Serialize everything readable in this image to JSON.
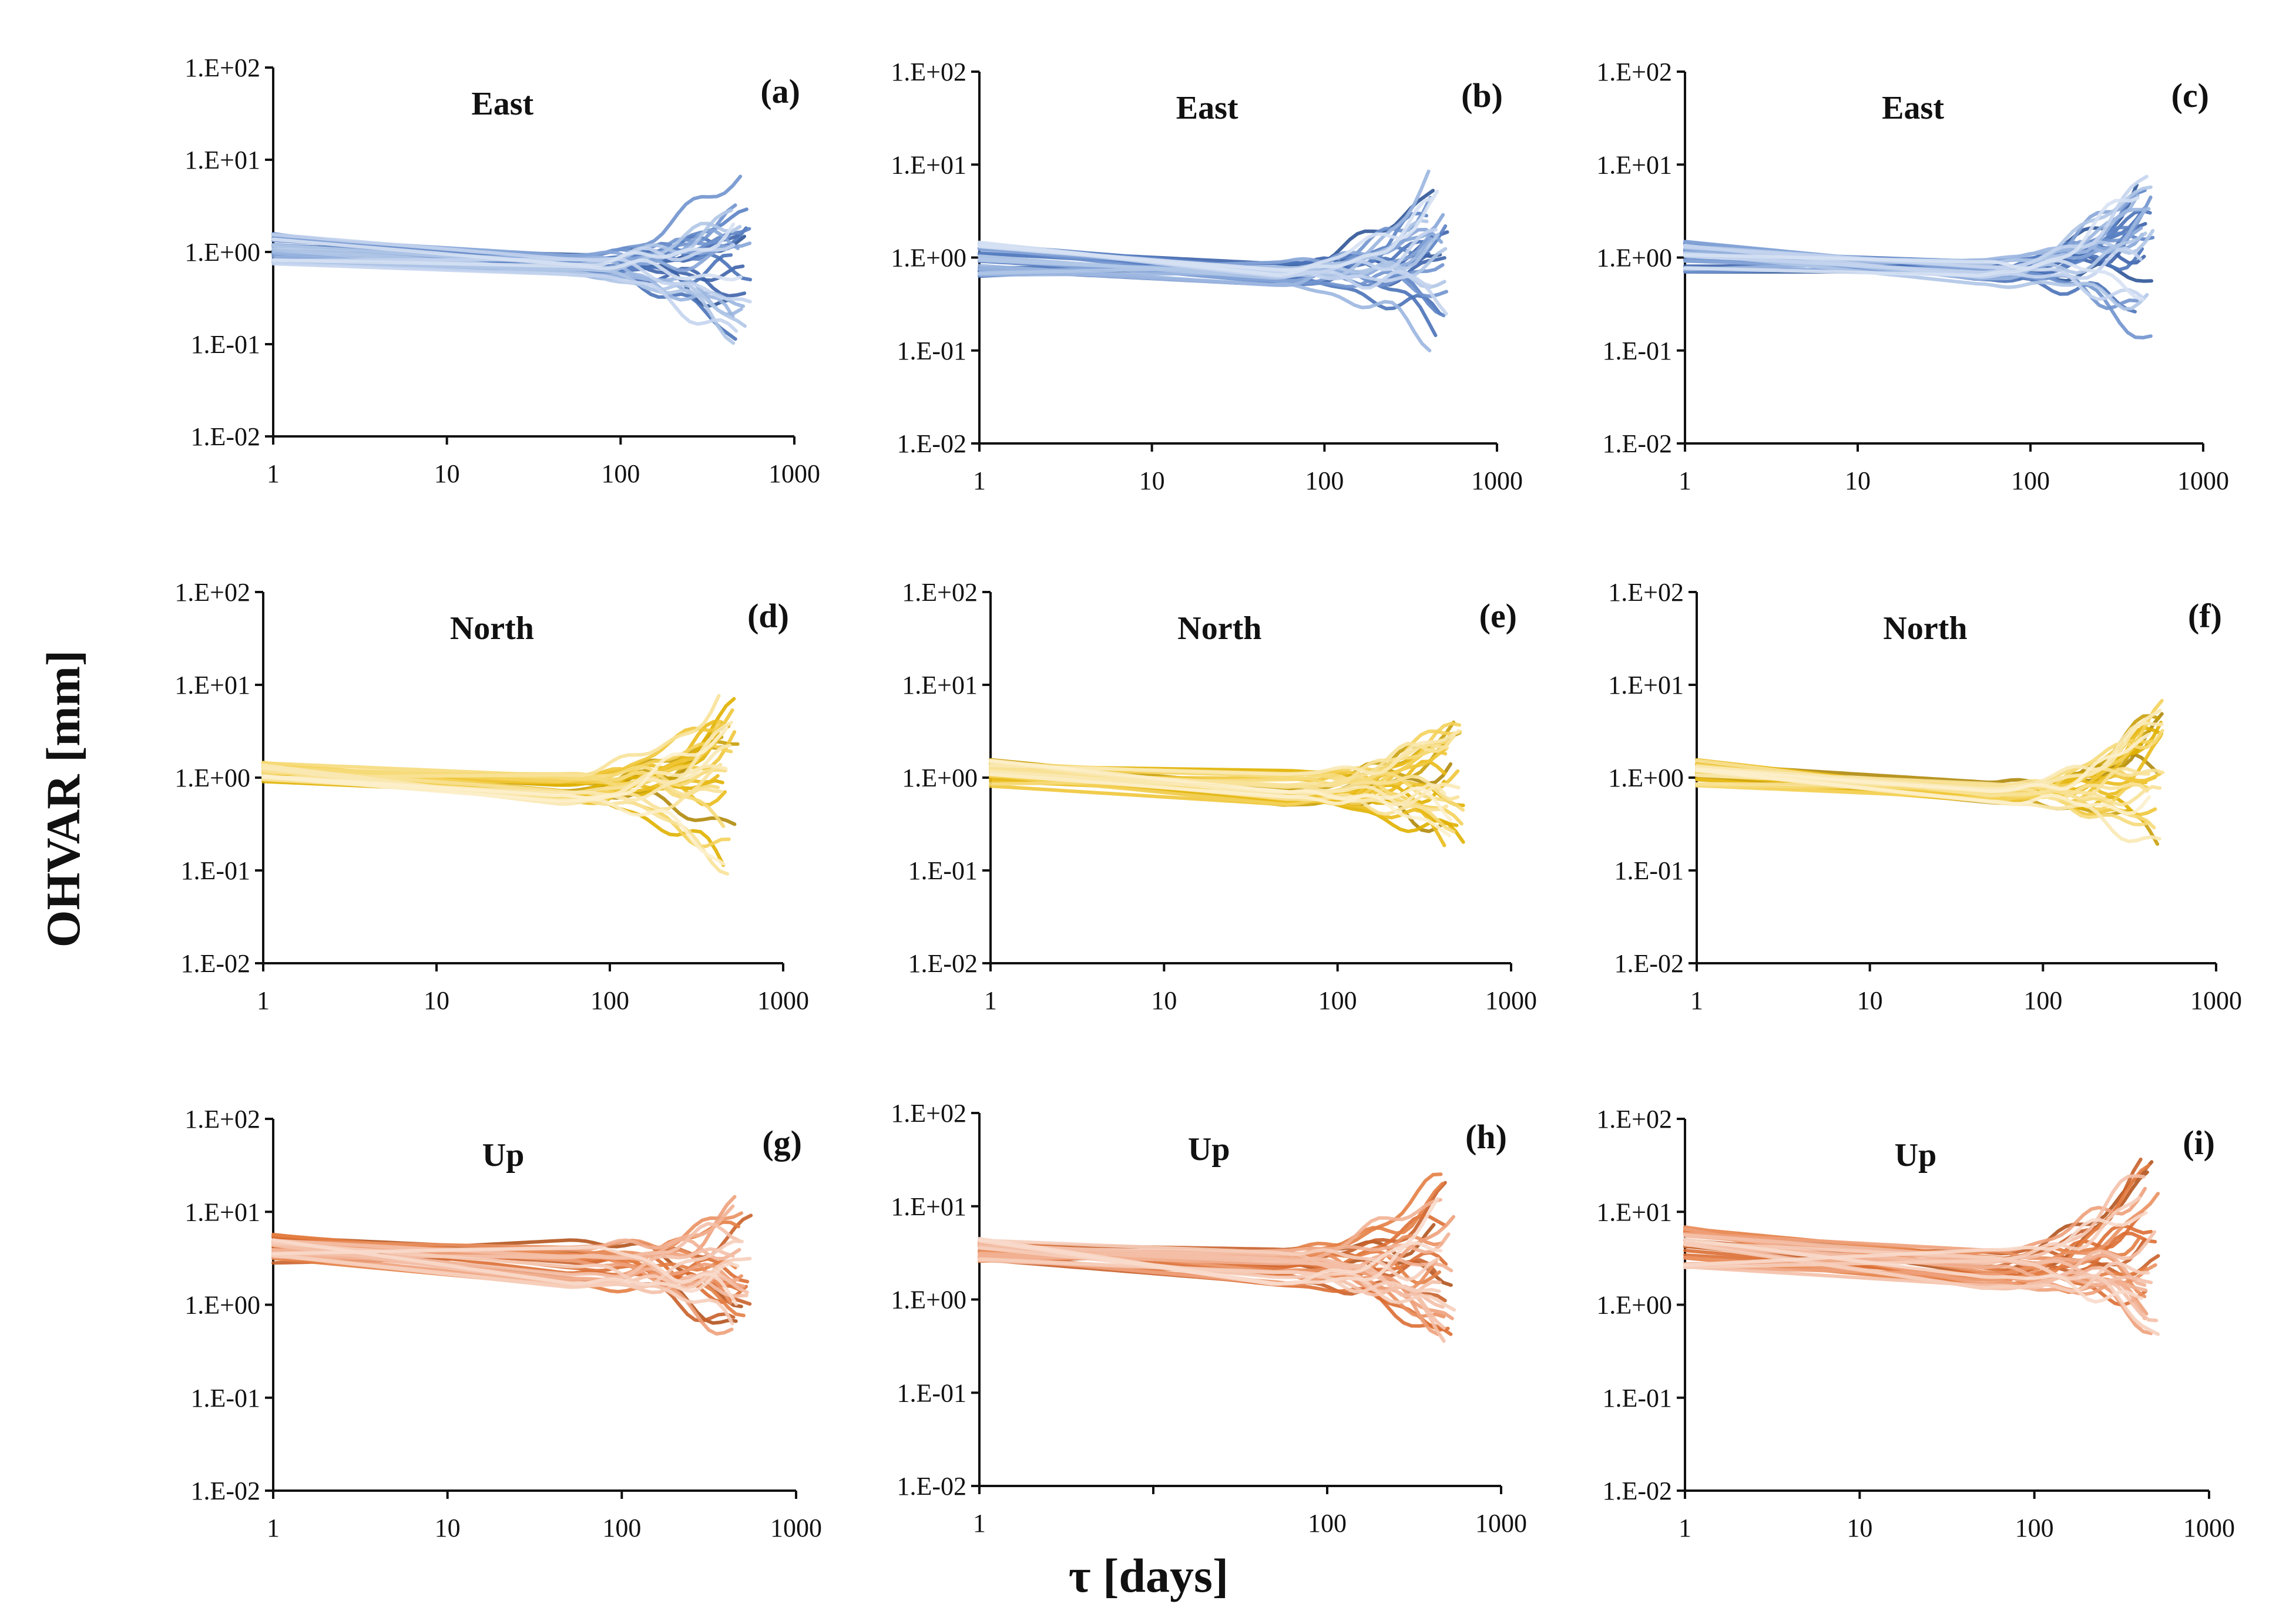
{
  "figure": {
    "ylabel": "OHVAR [mm]",
    "xlabel": "τ [days]"
  },
  "palettes": {
    "blue": [
      "#2f5597",
      "#3d63ab",
      "#4a72b8",
      "#5b82c4",
      "#7093ce",
      "#86a5d8",
      "#9bb6e0",
      "#b0c6e7",
      "#c4d4ee",
      "#d6e1f3"
    ],
    "yellow": [
      "#b08a0b",
      "#c9a00a",
      "#e0b100",
      "#eabb1a",
      "#f0c638",
      "#f4d15a",
      "#f6da7a",
      "#f8e299",
      "#fae9b5",
      "#fcf0cc"
    ],
    "orange": [
      "#b3541e",
      "#c9612a",
      "#dc6e33",
      "#e47e44",
      "#ea9060",
      "#eea07a",
      "#f2b193",
      "#f4c0a8",
      "#f6cebb",
      "#f8dacc"
    ]
  },
  "chart_data": [
    {
      "id": "a",
      "type": "line",
      "title": "East",
      "letter": "(a)",
      "palette": "blue",
      "xscale": "log",
      "yscale": "log",
      "xlim": [
        1,
        1000
      ],
      "ylim": [
        0.01,
        100
      ],
      "x_ticks": [
        "1",
        "10",
        "100",
        "1000"
      ],
      "y_ticks": [
        "1.E-02",
        "1.E-01",
        "1.E+00",
        "1.E+01",
        "1.E+02"
      ],
      "n_series": 30,
      "start_range": [
        0.7,
        1.6
      ],
      "mid_range": [
        0.55,
        0.95
      ],
      "end_range": [
        0.1,
        9
      ],
      "x_end": 560
    },
    {
      "id": "b",
      "type": "line",
      "title": "East",
      "letter": "(b)",
      "palette": "blue",
      "xscale": "log",
      "yscale": "log",
      "xlim": [
        1,
        1000
      ],
      "ylim": [
        0.01,
        100
      ],
      "x_ticks": [
        "1",
        "10",
        "100",
        "1000"
      ],
      "y_ticks": [
        "1.E-02",
        "1.E-01",
        "1.E+00",
        "1.E+01",
        "1.E+02"
      ],
      "n_series": 30,
      "start_range": [
        0.6,
        1.5
      ],
      "mid_range": [
        0.5,
        0.9
      ],
      "end_range": [
        0.13,
        8
      ],
      "x_end": 520
    },
    {
      "id": "c",
      "type": "line",
      "title": "East",
      "letter": "(c)",
      "palette": "blue",
      "xscale": "log",
      "yscale": "log",
      "xlim": [
        1,
        1000
      ],
      "ylim": [
        0.01,
        100
      ],
      "x_ticks": [
        "1",
        "10",
        "100",
        "1000"
      ],
      "y_ticks": [
        "1.E-02",
        "1.E-01",
        "1.E+00",
        "1.E+01",
        "1.E+02"
      ],
      "n_series": 30,
      "start_range": [
        0.7,
        1.5
      ],
      "mid_range": [
        0.5,
        0.95
      ],
      "end_range": [
        0.13,
        8
      ],
      "x_end": 520
    },
    {
      "id": "d",
      "type": "line",
      "title": "North",
      "letter": "(d)",
      "palette": "yellow",
      "xscale": "log",
      "yscale": "log",
      "xlim": [
        1,
        1000
      ],
      "ylim": [
        0.01,
        100
      ],
      "x_ticks": [
        "1",
        "10",
        "100",
        "1000"
      ],
      "y_ticks": [
        "1.E-02",
        "1.E-01",
        "1.E+00",
        "1.E+01",
        "1.E+02"
      ],
      "n_series": 30,
      "start_range": [
        0.9,
        1.5
      ],
      "mid_range": [
        0.5,
        1.1
      ],
      "end_range": [
        0.11,
        8
      ],
      "x_end": 560
    },
    {
      "id": "e",
      "type": "line",
      "title": "North",
      "letter": "(e)",
      "palette": "yellow",
      "xscale": "log",
      "yscale": "log",
      "xlim": [
        1,
        1000
      ],
      "ylim": [
        0.01,
        100
      ],
      "x_ticks": [
        "1",
        "10",
        "100",
        "1000"
      ],
      "y_ticks": [
        "1.E-02",
        "1.E-01",
        "1.E+00",
        "1.E+01",
        "1.E+02"
      ],
      "n_series": 30,
      "start_range": [
        0.8,
        1.6
      ],
      "mid_range": [
        0.5,
        1.2
      ],
      "end_range": [
        0.17,
        6
      ],
      "x_end": 540
    },
    {
      "id": "f",
      "type": "line",
      "title": "North",
      "letter": "(f)",
      "palette": "yellow",
      "xscale": "log",
      "yscale": "log",
      "xlim": [
        1,
        1000
      ],
      "ylim": [
        0.01,
        100
      ],
      "x_ticks": [
        "1",
        "10",
        "100",
        "1000"
      ],
      "y_ticks": [
        "1.E-02",
        "1.E-01",
        "1.E+00",
        "1.E+01",
        "1.E+02"
      ],
      "n_series": 30,
      "start_range": [
        0.8,
        1.6
      ],
      "mid_range": [
        0.5,
        0.9
      ],
      "end_range": [
        0.19,
        5
      ],
      "x_end": 500
    },
    {
      "id": "g",
      "type": "line",
      "title": "Up",
      "letter": "(g)",
      "palette": "orange",
      "xscale": "log",
      "yscale": "log",
      "xlim": [
        1,
        1000
      ],
      "ylim": [
        0.01,
        100
      ],
      "x_ticks": [
        "1",
        "10",
        "100",
        "1000"
      ],
      "y_ticks": [
        "1.E-02",
        "1.E-01",
        "1.E+00",
        "1.E+01",
        "1.E+02"
      ],
      "n_series": 30,
      "start_range": [
        2.8,
        6
      ],
      "mid_range": [
        1.5,
        5
      ],
      "end_range": [
        0.4,
        12
      ],
      "x_end": 560
    },
    {
      "id": "h",
      "type": "line",
      "title": "Up",
      "letter": "(h)",
      "palette": "orange",
      "xscale": "log",
      "yscale": "log",
      "xlim": [
        1,
        1000
      ],
      "ylim": [
        0.01,
        100
      ],
      "x_ticks": [
        "1",
        "",
        "100",
        "1000"
      ],
      "y_ticks": [
        "1.E-02",
        "1.E-01",
        "1.E+00",
        "1.E+01",
        "1.E+02"
      ],
      "n_series": 30,
      "start_range": [
        2.5,
        4.5
      ],
      "mid_range": [
        1.4,
        3.5
      ],
      "end_range": [
        0.35,
        22
      ],
      "x_end": 540
    },
    {
      "id": "i",
      "type": "line",
      "title": "Up",
      "letter": "(i)",
      "palette": "orange",
      "xscale": "log",
      "yscale": "log",
      "xlim": [
        1,
        1000
      ],
      "ylim": [
        0.01,
        100
      ],
      "x_ticks": [
        "1",
        "10",
        "100",
        "1000"
      ],
      "y_ticks": [
        "1.E-02",
        "1.E-01",
        "1.E+00",
        "1.E+01",
        "1.E+02"
      ],
      "n_series": 30,
      "start_range": [
        2.5,
        7
      ],
      "mid_range": [
        1.5,
        4
      ],
      "end_range": [
        0.35,
        40
      ],
      "x_end": 520
    }
  ]
}
